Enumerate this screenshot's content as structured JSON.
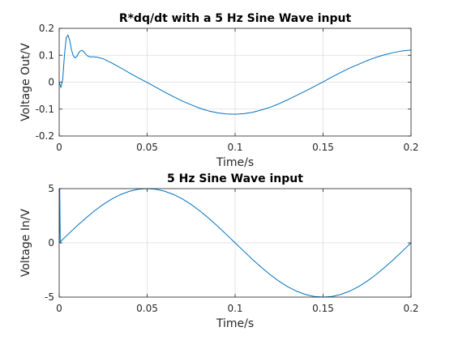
{
  "chart_data": [
    {
      "type": "line",
      "title": "R*dq/dt with a 5 Hz Sine Wave input",
      "xlabel": "Time/s",
      "ylabel": "Voltage Out/V",
      "xlim": [
        0,
        0.2
      ],
      "ylim": [
        -0.2,
        0.2
      ],
      "xticks": [
        "0",
        "0.05",
        "0.1",
        "0.15",
        "0.2"
      ],
      "xtick_values": [
        0,
        0.05,
        0.1,
        0.15,
        0.2
      ],
      "yticks": [
        "-0.2",
        "-0.1",
        "0",
        "0.1",
        "0.2"
      ],
      "ytick_values": [
        -0.2,
        -0.1,
        0,
        0.1,
        0.2
      ],
      "grid": true,
      "color": "#0072BD",
      "series": [
        {
          "x": [
            0,
            0.001,
            0.002,
            0.003,
            0.004,
            0.005,
            0.006,
            0.007,
            0.008,
            0.009,
            0.01,
            0.011,
            0.012,
            0.013,
            0.014,
            0.015,
            0.016,
            0.017,
            0.018,
            0.019,
            0.02,
            0.022,
            0.025,
            0.03,
            0.035,
            0.04,
            0.045,
            0.05,
            0.055,
            0.06,
            0.065,
            0.07,
            0.075,
            0.08,
            0.085,
            0.09,
            0.095,
            0.1,
            0.105,
            0.11,
            0.115,
            0.12,
            0.125,
            0.13,
            0.135,
            0.14,
            0.145,
            0.15,
            0.155,
            0.16,
            0.165,
            0.17,
            0.175,
            0.18,
            0.185,
            0.19,
            0.195,
            0.2
          ],
          "y": [
            0,
            -0.02,
            0.01,
            0.1,
            0.165,
            0.175,
            0.155,
            0.12,
            0.098,
            0.09,
            0.095,
            0.108,
            0.116,
            0.118,
            0.113,
            0.105,
            0.098,
            0.095,
            0.094,
            0.094,
            0.094,
            0.092,
            0.087,
            0.071,
            0.053,
            0.034,
            0.016,
            -0.001,
            -0.019,
            -0.037,
            -0.054,
            -0.07,
            -0.084,
            -0.097,
            -0.107,
            -0.114,
            -0.118,
            -0.119,
            -0.117,
            -0.112,
            -0.103,
            -0.093,
            -0.08,
            -0.065,
            -0.049,
            -0.033,
            -0.016,
            0.001,
            0.019,
            0.036,
            0.052,
            0.066,
            0.08,
            0.092,
            0.102,
            0.11,
            0.116,
            0.119
          ]
        }
      ]
    },
    {
      "type": "line",
      "title": "5 Hz Sine Wave input",
      "xlabel": "Time/s",
      "ylabel": "Voltage In/V",
      "xlim": [
        0,
        0.2
      ],
      "ylim": [
        -5,
        5
      ],
      "xticks": [
        "0",
        "0.05",
        "0.1",
        "0.15",
        "0.2"
      ],
      "xtick_values": [
        0,
        0.05,
        0.1,
        0.15,
        0.2
      ],
      "yticks": [
        "-5",
        "0",
        "5"
      ],
      "ytick_values": [
        -5,
        0,
        5
      ],
      "grid": true,
      "color": "#0072BD",
      "series": [
        {
          "x": [
            0,
            0.0003,
            0.0006,
            0.001,
            0.005,
            0.01,
            0.015,
            0.02,
            0.025,
            0.03,
            0.035,
            0.04,
            0.045,
            0.05,
            0.055,
            0.06,
            0.065,
            0.07,
            0.075,
            0.08,
            0.085,
            0.09,
            0.095,
            0.1,
            0.105,
            0.11,
            0.115,
            0.12,
            0.125,
            0.13,
            0.135,
            0.14,
            0.145,
            0.15,
            0.155,
            0.16,
            0.165,
            0.17,
            0.175,
            0.18,
            0.185,
            0.19,
            0.195,
            0.2
          ],
          "y": [
            0,
            5,
            0,
            0.16,
            0.78,
            1.55,
            2.27,
            2.94,
            3.54,
            4.05,
            4.46,
            4.76,
            4.94,
            5.0,
            4.94,
            4.76,
            4.46,
            4.05,
            3.54,
            2.94,
            2.27,
            1.55,
            0.78,
            0,
            -0.78,
            -1.55,
            -2.27,
            -2.94,
            -3.54,
            -4.05,
            -4.46,
            -4.76,
            -4.94,
            -5.0,
            -4.94,
            -4.76,
            -4.46,
            -4.05,
            -3.54,
            -2.94,
            -2.27,
            -1.55,
            -0.78,
            0
          ]
        }
      ]
    }
  ]
}
